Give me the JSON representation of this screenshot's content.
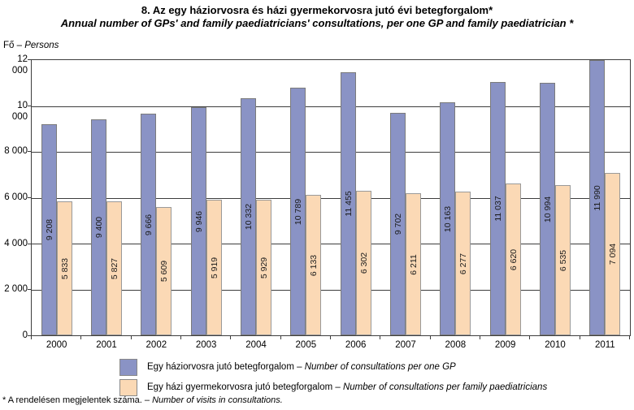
{
  "title": {
    "line1_hu": "8. Az egy háziorvosra és házi gyermekorvosra jutó évi betegforgalom*",
    "line2_en": "Annual number of GPs' and family paediatricians' consultations, per one GP and family paediatrician *"
  },
  "axis_unit": {
    "prefix": "Fő – ",
    "italic": "Persons"
  },
  "chart_data": {
    "type": "bar",
    "categories": [
      "2000",
      "2001",
      "2002",
      "2003",
      "2004",
      "2005",
      "2006",
      "2007",
      "2008",
      "2009",
      "2010",
      "2011"
    ],
    "series": [
      {
        "name": "Egy háziorvosra jutó betegforgalom – Number of consultations per one GP",
        "color": "#8a93c5",
        "values": [
          9208,
          9400,
          9666,
          9946,
          10332,
          10789,
          11455,
          9702,
          10163,
          11037,
          10994,
          11990
        ]
      },
      {
        "name": "Egy házi gyermekorvosra jutó betegforgalom – Number of consultations per family paediatricians",
        "color": "#fbd9b5",
        "values": [
          5833,
          5827,
          5609,
          5919,
          5929,
          6133,
          6302,
          6211,
          6277,
          6620,
          6535,
          7094
        ]
      }
    ],
    "title": "8. Az egy háziorvosra és házi gyermekorvosra jutó évi betegforgalom*",
    "subtitle": "Annual number of GPs' and family paediatricians' consultations, per one GP and family paediatrician *",
    "xlabel": "",
    "ylabel": "Fő – Persons",
    "ylim": [
      0,
      12000
    ],
    "ytick_step": 2000,
    "y_tick_labels": [
      "12 000",
      "10 000",
      "8 000",
      "6 000",
      "4 000",
      "2 000",
      "0"
    ],
    "grid": true,
    "legend_position": "bottom",
    "value_labels_rotated": true
  },
  "legend": {
    "items": [
      {
        "swatch_color": "#8a93c5",
        "hu": "Egy háziorvosra jutó betegforgalom – ",
        "en": "Number of consultations per one GP"
      },
      {
        "swatch_color": "#fbd9b5",
        "hu": "Egy házi gyermekorvosra jutó betegforgalom – ",
        "en": "Number of consultations per family paediatricians"
      }
    ]
  },
  "footnote": {
    "prefix": "* A rendelésen megjelentek száma. – ",
    "italic": "Number of visits in consultations."
  }
}
